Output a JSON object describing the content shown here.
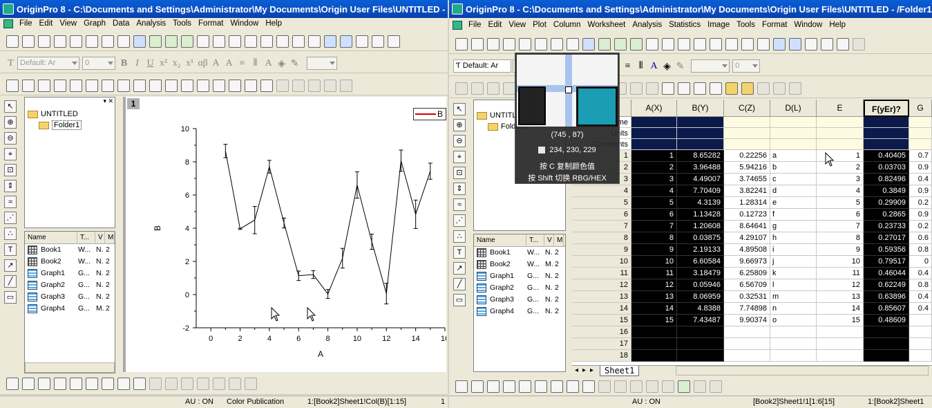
{
  "left_window": {
    "title": "OriginPro 8 - C:\\Documents and Settings\\Administrator\\My Documents\\Origin User Files\\UNTITLED - /",
    "menu": [
      "File",
      "Edit",
      "View",
      "Graph",
      "Data",
      "Analysis",
      "Tools",
      "Format",
      "Window",
      "Help"
    ],
    "font_combo": "Default: Ar",
    "size_combo": "0",
    "project_tree": {
      "root": "UNTITLED",
      "folder": "Folder1"
    },
    "list_headers": [
      "Name",
      "T...",
      "V",
      "M"
    ],
    "list_items": [
      {
        "name": "Book1",
        "type": "W...",
        "v": "N.",
        "m": "2"
      },
      {
        "name": "Book2",
        "type": "W...",
        "v": "N.",
        "m": "2"
      },
      {
        "name": "Graph1",
        "type": "G...",
        "v": "N.",
        "m": "2"
      },
      {
        "name": "Graph2",
        "type": "G...",
        "v": "N.",
        "m": "2"
      },
      {
        "name": "Graph3",
        "type": "G...",
        "v": "N.",
        "m": "2"
      },
      {
        "name": "Graph4",
        "type": "G...",
        "v": "M.",
        "m": "2"
      }
    ],
    "layer_label": "1",
    "legend_label": "B",
    "status": {
      "au": "AU : ON",
      "theme": "Color Publication",
      "range": "1:[Book2]Sheet1!Col(B)[1:15]",
      "page": "1"
    }
  },
  "chart_data": {
    "type": "line",
    "xlabel": "A",
    "ylabel": "B",
    "xlim": [
      -1,
      16
    ],
    "ylim": [
      -2,
      10
    ],
    "x_ticks": [
      "0",
      "2",
      "4",
      "6",
      "8",
      "10",
      "12",
      "14",
      "16"
    ],
    "y_ticks": [
      "-2",
      "0",
      "2",
      "4",
      "6",
      "8",
      "10"
    ],
    "series": [
      {
        "x": [
          1,
          2,
          3,
          4,
          5,
          6,
          7,
          8,
          9,
          10,
          11,
          12,
          13,
          14,
          15
        ],
        "y": [
          8.65282,
          3.96488,
          4.49007,
          7.70409,
          4.3139,
          1.13428,
          1.20608,
          0.03875,
          2.19133,
          6.60584,
          3.18479,
          0.05946,
          8.06959,
          4.8388,
          7.43487
        ],
        "err": [
          0.40405,
          0.03703,
          0.82496,
          0.3849,
          0.29909,
          0.2865,
          0.23733,
          0.27017,
          0.59356,
          0.79517,
          0.46044,
          0.62249,
          0.63896,
          0.85607,
          0.48609
        ]
      }
    ]
  },
  "right_window": {
    "title": "OriginPro 8 - C:\\Documents and Settings\\Administrator\\My Documents\\Origin User Files\\UNTITLED - /Folder1/",
    "menu": [
      "File",
      "Edit",
      "View",
      "Plot",
      "Column",
      "Worksheet",
      "Analysis",
      "Statistics",
      "Image",
      "Tools",
      "Format",
      "Window",
      "Help"
    ],
    "font_combo": "Default: Ar",
    "size_combo": "0",
    "project_tree": {
      "root": "UNTITL",
      "folder": "Folder1"
    },
    "list_headers": [
      "Name",
      "T...",
      "V",
      "M"
    ],
    "list_items": [
      {
        "name": "Book1",
        "type": "W...",
        "v": "N.",
        "m": "2"
      },
      {
        "name": "Book2",
        "type": "W...",
        "v": "M.",
        "m": "2"
      },
      {
        "name": "Graph1",
        "type": "G...",
        "v": "N.",
        "m": "2"
      },
      {
        "name": "Graph2",
        "type": "G...",
        "v": "N.",
        "m": "2"
      },
      {
        "name": "Graph3",
        "type": "G...",
        "v": "N.",
        "m": "2"
      },
      {
        "name": "Graph4",
        "type": "G...",
        "v": "N.",
        "m": "2"
      }
    ],
    "row_labels": [
      "ime",
      "Units",
      "Comments"
    ],
    "sheet_tab": "Sheet1",
    "status": {
      "au": "AU : ON",
      "range": "[Book2]Sheet1!1[1:6[15]",
      "page": "1:[Book2]Sheet1"
    }
  },
  "worksheet": {
    "columns": [
      "A(X)",
      "B(Y)",
      "C(Z)",
      "D(L)",
      "E",
      "F(yEr)?",
      "G"
    ],
    "rows": [
      {
        "n": "1",
        "a": "1",
        "b": "8.65282",
        "c": "0.22256",
        "d": "a",
        "e": "1",
        "f": "0.40405",
        "g": "0.7"
      },
      {
        "n": "2",
        "a": "2",
        "b": "3.96488",
        "c": "5.94216",
        "d": "b",
        "e": "2",
        "f": "0.03703",
        "g": "0.9"
      },
      {
        "n": "3",
        "a": "3",
        "b": "4.49007",
        "c": "3.74655",
        "d": "c",
        "e": "3",
        "f": "0.82496",
        "g": "0.4"
      },
      {
        "n": "4",
        "a": "4",
        "b": "7.70409",
        "c": "3.82241",
        "d": "d",
        "e": "4",
        "f": "0.3849",
        "g": "0.9"
      },
      {
        "n": "5",
        "a": "5",
        "b": "4.3139",
        "c": "1.28314",
        "d": "e",
        "e": "5",
        "f": "0.29909",
        "g": "0.2"
      },
      {
        "n": "6",
        "a": "6",
        "b": "1.13428",
        "c": "0.12723",
        "d": "f",
        "e": "6",
        "f": "0.2865",
        "g": "0.9"
      },
      {
        "n": "7",
        "a": "7",
        "b": "1.20608",
        "c": "8.64641",
        "d": "g",
        "e": "7",
        "f": "0.23733",
        "g": "0.2"
      },
      {
        "n": "8",
        "a": "8",
        "b": "0.03875",
        "c": "4.29107",
        "d": "h",
        "e": "8",
        "f": "0.27017",
        "g": "0.6"
      },
      {
        "n": "9",
        "a": "9",
        "b": "2.19133",
        "c": "4.89508",
        "d": "i",
        "e": "9",
        "f": "0.59356",
        "g": "0.8"
      },
      {
        "n": "10",
        "a": "10",
        "b": "6.60584",
        "c": "9.66973",
        "d": "j",
        "e": "10",
        "f": "0.79517",
        "g": "0"
      },
      {
        "n": "11",
        "a": "11",
        "b": "3.18479",
        "c": "6.25809",
        "d": "k",
        "e": "11",
        "f": "0.46044",
        "g": "0.4"
      },
      {
        "n": "12",
        "a": "12",
        "b": "0.05946",
        "c": "6.56709",
        "d": "l",
        "e": "12",
        "f": "0.62249",
        "g": "0.8"
      },
      {
        "n": "13",
        "a": "13",
        "b": "8.06959",
        "c": "0.32531",
        "d": "m",
        "e": "13",
        "f": "0.63896",
        "g": "0.4"
      },
      {
        "n": "14",
        "a": "14",
        "b": "4.8388",
        "c": "7.74898",
        "d": "n",
        "e": "14",
        "f": "0.85607",
        "g": "0.4"
      },
      {
        "n": "15",
        "a": "15",
        "b": "7.43487",
        "c": "9.90374",
        "d": "o",
        "e": "15",
        "f": "0.48609",
        "g": ""
      },
      {
        "n": "16",
        "a": "",
        "b": "",
        "c": "",
        "d": "",
        "e": "",
        "f": "",
        "g": ""
      },
      {
        "n": "17",
        "a": "",
        "b": "",
        "c": "",
        "d": "",
        "e": "",
        "f": "",
        "g": ""
      },
      {
        "n": "18",
        "a": "",
        "b": "",
        "c": "",
        "d": "",
        "e": "",
        "f": "",
        "g": ""
      }
    ]
  },
  "color_picker": {
    "coords": "(745 , 87)",
    "rgb": "234, 230, 229",
    "hint1": "按 C 复制颜色值",
    "hint2": "按 Shift 切换 RBG/HEX"
  },
  "colors": {
    "selected_column_bg": "#000000",
    "label_row_bg": "#fffbe0",
    "title_bar": "#0b4fc2"
  }
}
